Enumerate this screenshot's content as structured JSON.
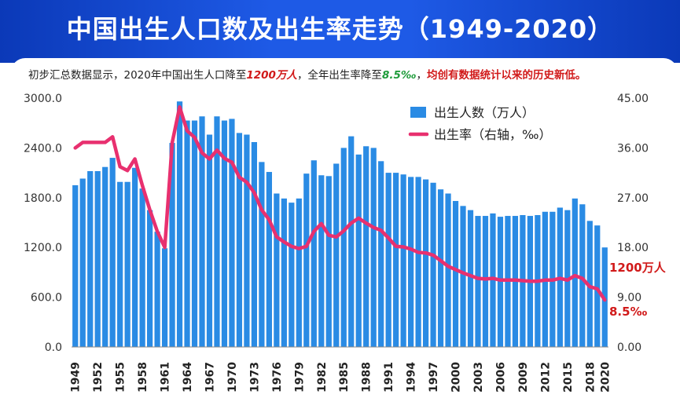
{
  "title": "中国出生人口数及出生率走势（1949-2020）",
  "subtitle": {
    "p1": "初步汇总数据显示，2020年中国出生人口降至",
    "v1": "1200万人",
    "p2": "，全年出生率降至",
    "v2": "8.5‰",
    "p3": "，",
    "p4": "均创有数据统计以来的历史新低。"
  },
  "colors": {
    "bar": "#2a8be4",
    "line": "#e8306f",
    "header": "#1e5ae6",
    "annotation": "#d11a1a"
  },
  "chart_data": {
    "type": "bar",
    "x": [
      1949,
      1950,
      1951,
      1952,
      1953,
      1954,
      1955,
      1956,
      1957,
      1958,
      1959,
      1960,
      1961,
      1962,
      1963,
      1964,
      1965,
      1966,
      1967,
      1968,
      1969,
      1970,
      1971,
      1972,
      1973,
      1974,
      1975,
      1976,
      1977,
      1978,
      1979,
      1980,
      1981,
      1982,
      1983,
      1984,
      1985,
      1986,
      1987,
      1988,
      1989,
      1990,
      1991,
      1992,
      1993,
      1994,
      1995,
      1996,
      1997,
      1998,
      1999,
      2000,
      2001,
      2002,
      2003,
      2004,
      2005,
      2006,
      2007,
      2008,
      2009,
      2010,
      2011,
      2012,
      2013,
      2014,
      2015,
      2016,
      2017,
      2018,
      2019,
      2020
    ],
    "x_ticks": [
      "1949",
      "1952",
      "1955",
      "1958",
      "1961",
      "1964",
      "1967",
      "1970",
      "1973",
      "1976",
      "1979",
      "1982",
      "1985",
      "1988",
      "1991",
      "1994",
      "1997",
      "2000",
      "2003",
      "2006",
      "2009",
      "2012",
      "2015",
      "2018",
      "2020"
    ],
    "series": [
      {
        "name": "出生人数（万人）",
        "type": "bar",
        "axis": "left",
        "values": [
          1950,
          2030,
          2120,
          2120,
          2170,
          2280,
          1990,
          1990,
          2160,
          1910,
          1650,
          1390,
          1190,
          2460,
          2960,
          2730,
          2730,
          2780,
          2560,
          2780,
          2730,
          2750,
          2580,
          2560,
          2470,
          2230,
          2110,
          1850,
          1790,
          1740,
          1790,
          2090,
          2250,
          2070,
          2060,
          2210,
          2400,
          2540,
          2320,
          2420,
          2400,
          2240,
          2100,
          2100,
          2080,
          2050,
          2050,
          2020,
          1980,
          1900,
          1850,
          1760,
          1700,
          1650,
          1580,
          1580,
          1610,
          1570,
          1580,
          1580,
          1590,
          1580,
          1590,
          1630,
          1630,
          1680,
          1650,
          1790,
          1720,
          1520,
          1465,
          1200
        ]
      },
      {
        "name": "出生率（右轴，‰）",
        "type": "line",
        "axis": "right",
        "values": [
          36.0,
          37.0,
          37.0,
          37.0,
          37.0,
          38.0,
          32.6,
          31.9,
          34.0,
          29.2,
          24.8,
          20.9,
          18.0,
          37.0,
          43.4,
          39.1,
          37.9,
          35.1,
          34.0,
          35.6,
          34.1,
          33.4,
          30.7,
          29.8,
          27.9,
          24.8,
          23.0,
          19.9,
          19.0,
          18.2,
          17.8,
          18.2,
          20.9,
          22.3,
          20.2,
          19.9,
          21.0,
          22.4,
          23.3,
          22.4,
          21.6,
          21.1,
          19.7,
          18.2,
          18.1,
          17.7,
          17.1,
          17.0,
          16.6,
          15.6,
          14.6,
          14.0,
          13.4,
          12.9,
          12.4,
          12.3,
          12.4,
          12.1,
          12.1,
          12.1,
          12.0,
          11.9,
          11.9,
          12.1,
          12.1,
          12.4,
          12.1,
          12.9,
          12.4,
          10.9,
          10.5,
          8.5
        ]
      }
    ],
    "y_left": {
      "lim": [
        0,
        3000
      ],
      "ticks": [
        "0.0",
        "600.0",
        "1200.0",
        "1800.0",
        "2400.0",
        "3000.0"
      ]
    },
    "y_right": {
      "lim": [
        0,
        45
      ],
      "ticks": [
        "0.00",
        "9.00",
        "18.00",
        "27.00",
        "36.00",
        "45.00"
      ]
    },
    "annotations": [
      "1200万人",
      "8.5‰"
    ],
    "legend": "top-right",
    "grid": false
  }
}
